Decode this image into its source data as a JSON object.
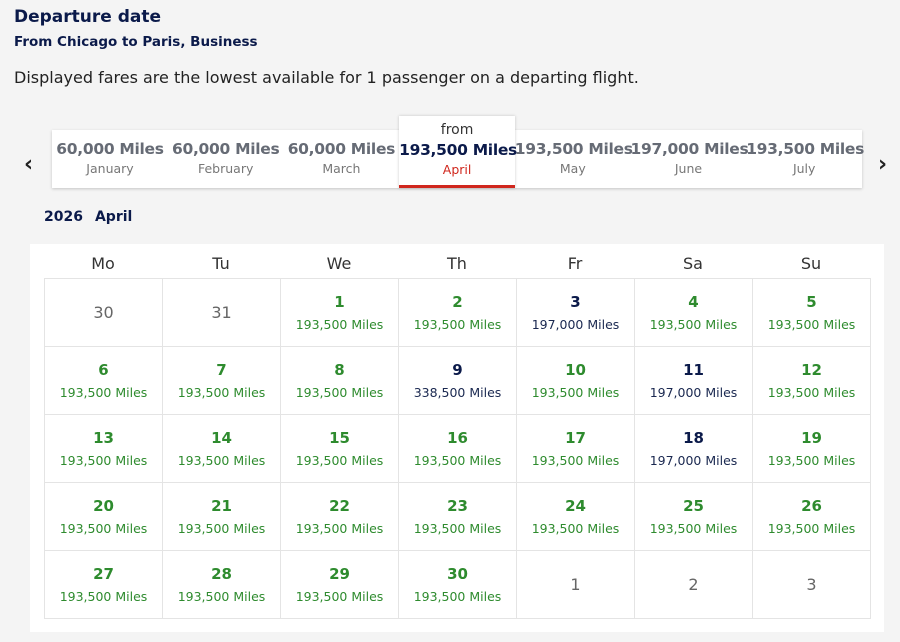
{
  "title": "Departure date",
  "subtitle": "From Chicago to Paris, Business",
  "note": "Displayed fares are the lowest available for 1 passenger on a departing flight.",
  "months": [
    {
      "miles": "60,000 Miles",
      "name": "January"
    },
    {
      "miles": "60,000 Miles",
      "name": "February"
    },
    {
      "miles": "60,000 Miles",
      "name": "March"
    },
    {
      "prefix": "from",
      "miles": "193,500 Miles",
      "name": "April",
      "selected": true
    },
    {
      "miles": "193,500 Miles",
      "name": "May"
    },
    {
      "miles": "197,000 Miles",
      "name": "June"
    },
    {
      "miles": "193,500 Miles",
      "name": "July"
    }
  ],
  "year": "2026",
  "month": "April",
  "weekdays": [
    "Mo",
    "Tu",
    "We",
    "Th",
    "Fr",
    "Sa",
    "Su"
  ],
  "colors": {
    "lowest": "#2e8b2e",
    "other": "#0b1a4a",
    "selected_underline": "#d0271d"
  },
  "days": [
    {
      "day": "30",
      "status": "empty"
    },
    {
      "day": "31",
      "status": "empty"
    },
    {
      "day": "1",
      "miles": "193,500 Miles",
      "status": "lowest"
    },
    {
      "day": "2",
      "miles": "193,500 Miles",
      "status": "lowest"
    },
    {
      "day": "3",
      "miles": "197,000 Miles",
      "status": "other"
    },
    {
      "day": "4",
      "miles": "193,500 Miles",
      "status": "lowest"
    },
    {
      "day": "5",
      "miles": "193,500 Miles",
      "status": "lowest"
    },
    {
      "day": "6",
      "miles": "193,500 Miles",
      "status": "lowest"
    },
    {
      "day": "7",
      "miles": "193,500 Miles",
      "status": "lowest"
    },
    {
      "day": "8",
      "miles": "193,500 Miles",
      "status": "lowest"
    },
    {
      "day": "9",
      "miles": "338,500 Miles",
      "status": "other"
    },
    {
      "day": "10",
      "miles": "193,500 Miles",
      "status": "lowest"
    },
    {
      "day": "11",
      "miles": "197,000 Miles",
      "status": "other"
    },
    {
      "day": "12",
      "miles": "193,500 Miles",
      "status": "lowest"
    },
    {
      "day": "13",
      "miles": "193,500 Miles",
      "status": "lowest"
    },
    {
      "day": "14",
      "miles": "193,500 Miles",
      "status": "lowest"
    },
    {
      "day": "15",
      "miles": "193,500 Miles",
      "status": "lowest"
    },
    {
      "day": "16",
      "miles": "193,500 Miles",
      "status": "lowest"
    },
    {
      "day": "17",
      "miles": "193,500 Miles",
      "status": "lowest"
    },
    {
      "day": "18",
      "miles": "197,000 Miles",
      "status": "other"
    },
    {
      "day": "19",
      "miles": "193,500 Miles",
      "status": "lowest"
    },
    {
      "day": "20",
      "miles": "193,500 Miles",
      "status": "lowest"
    },
    {
      "day": "21",
      "miles": "193,500 Miles",
      "status": "lowest"
    },
    {
      "day": "22",
      "miles": "193,500 Miles",
      "status": "lowest"
    },
    {
      "day": "23",
      "miles": "193,500 Miles",
      "status": "lowest"
    },
    {
      "day": "24",
      "miles": "193,500 Miles",
      "status": "lowest"
    },
    {
      "day": "25",
      "miles": "193,500 Miles",
      "status": "lowest"
    },
    {
      "day": "26",
      "miles": "193,500 Miles",
      "status": "lowest"
    },
    {
      "day": "27",
      "miles": "193,500 Miles",
      "status": "lowest"
    },
    {
      "day": "28",
      "miles": "193,500 Miles",
      "status": "lowest"
    },
    {
      "day": "29",
      "miles": "193,500 Miles",
      "status": "lowest"
    },
    {
      "day": "30",
      "miles": "193,500 Miles",
      "status": "lowest"
    },
    {
      "day": "1",
      "status": "empty"
    },
    {
      "day": "2",
      "status": "empty"
    },
    {
      "day": "3",
      "status": "empty"
    }
  ]
}
